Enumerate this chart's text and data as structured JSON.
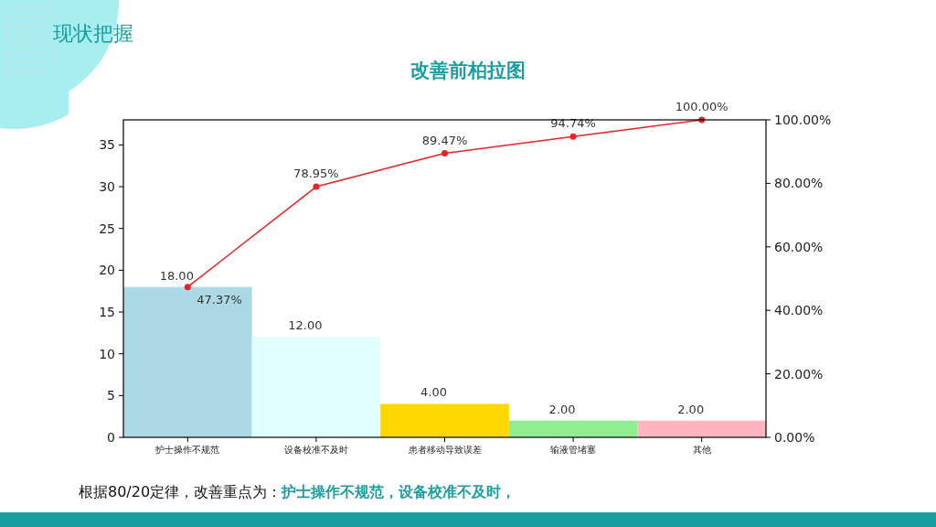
{
  "chart_data": {
    "type": "bar",
    "title": "改善前柏拉图",
    "categories": [
      "护士操作不规范",
      "设备校准不及时",
      "患者移动导致误差",
      "输液管堵塞",
      "其他"
    ],
    "series": [
      {
        "colors": [
          "#add8e6",
          "#e0ffff",
          "#ffd700",
          "#90ee90",
          "#ffb6c1"
        ],
        "values": [
          18,
          12,
          4,
          2,
          2
        ],
        "value_labels": [
          "18.00",
          "12.00",
          "4.00",
          "2.00",
          "2.00"
        ]
      },
      {
        "type": "line",
        "axis": "y2",
        "color": "#ee2222",
        "values": [
          47.37,
          78.95,
          89.47,
          94.74,
          100
        ],
        "value_labels": [
          "47.37%",
          "78.95%",
          "89.47%",
          "94.74%",
          "100.00%"
        ]
      }
    ],
    "ylim": [
      0,
      38
    ],
    "yticks": [
      0,
      5,
      10,
      15,
      20,
      25,
      30,
      35
    ],
    "y2lim": [
      0,
      100
    ],
    "y2ticks": [
      {
        "value": 0,
        "label": "0.00%"
      },
      {
        "value": 20,
        "label": "20.00%"
      },
      {
        "value": 40,
        "label": "40.00%"
      },
      {
        "value": 60,
        "label": "60.00%"
      },
      {
        "value": 80,
        "label": "80.00%"
      },
      {
        "value": 100,
        "label": "100.00%"
      }
    ],
    "marker": "circle",
    "grid": false,
    "annotations": [
      "现状把握",
      "根据80/20定律，改善重点为：",
      "护士操作不规范，设备校准不及时，"
    ]
  }
}
